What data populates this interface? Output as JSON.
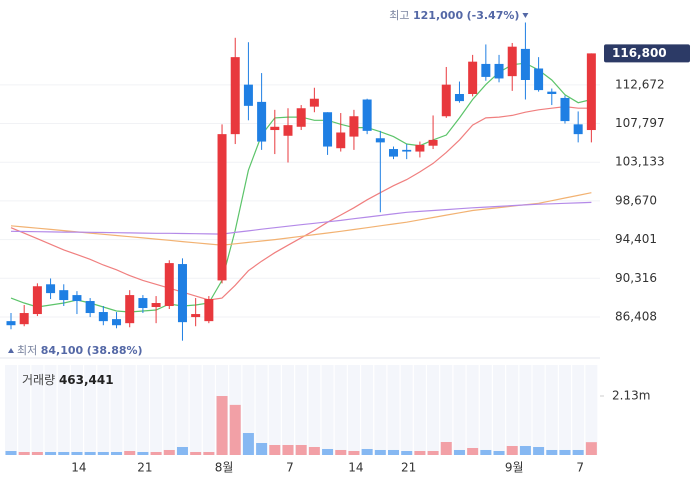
{
  "chart_data": {
    "type": "candlestick",
    "log": true,
    "grid": true,
    "up_color": "#e8383d",
    "down_color": "#1f7fe3",
    "categories": [
      null,
      null,
      null,
      null,
      null,
      "14",
      null,
      null,
      null,
      null,
      "21",
      null,
      null,
      null,
      null,
      null,
      "8월",
      null,
      null,
      null,
      null,
      "7",
      null,
      null,
      null,
      null,
      "14",
      null,
      null,
      null,
      "21",
      null,
      null,
      null,
      null,
      null,
      null,
      null,
      "9월",
      null,
      null,
      null,
      null,
      "7",
      null
    ],
    "open": [
      86000,
      85700,
      86700,
      89700,
      89100,
      88600,
      88000,
      86900,
      86200,
      85800,
      88300,
      87400,
      87500,
      91800,
      86400,
      86000,
      90100,
      106500,
      112700,
      110500,
      107000,
      106300,
      107400,
      109900,
      109200,
      104800,
      106200,
      110800,
      106000,
      104700,
      104600,
      104400,
      105100,
      108700,
      111500,
      111500,
      115400,
      115400,
      113800,
      117400,
      114800,
      111800,
      111000,
      107700,
      107000
    ],
    "high": [
      86800,
      87600,
      89800,
      90300,
      89700,
      89000,
      88300,
      87500,
      86900,
      89100,
      88600,
      88500,
      92200,
      92400,
      88300,
      88500,
      107700,
      118900,
      118300,
      114200,
      109500,
      109700,
      110100,
      112300,
      109200,
      109100,
      109500,
      110900,
      106900,
      105000,
      105300,
      105600,
      108800,
      115000,
      113100,
      116600,
      118000,
      116600,
      118200,
      121000,
      116300,
      112200,
      111300,
      109300,
      116800
    ],
    "low": [
      85200,
      85500,
      86500,
      88200,
      87500,
      86700,
      86400,
      85600,
      85300,
      85400,
      86800,
      85800,
      87200,
      84100,
      85500,
      85800,
      89800,
      105300,
      108200,
      104600,
      104100,
      103100,
      107000,
      109200,
      104000,
      104400,
      104600,
      106500,
      97400,
      103500,
      103500,
      103700,
      104700,
      108500,
      110400,
      111200,
      113200,
      113000,
      111900,
      110800,
      111800,
      110100,
      107800,
      105500,
      105500
    ],
    "close": [
      85600,
      86800,
      89500,
      88800,
      88100,
      88000,
      86800,
      86000,
      85600,
      88600,
      87300,
      87800,
      91900,
      85900,
      86700,
      88200,
      106500,
      116300,
      110000,
      105600,
      107400,
      107600,
      109700,
      110900,
      105000,
      106700,
      108700,
      106900,
      105500,
      103800,
      104400,
      105200,
      105800,
      112700,
      110600,
      115700,
      113700,
      113500,
      117700,
      113300,
      112000,
      111500,
      108100,
      106500,
      116800
    ],
    "series": [
      {
        "color": "#5cc46a",
        "values": [
          88300,
          87800,
          87400,
          87600,
          87800,
          88100,
          87800,
          87400,
          87000,
          86900,
          87000,
          87100,
          87700,
          87500,
          87600,
          87800,
          90100,
          95400,
          102200,
          106400,
          108500,
          108600,
          108600,
          108200,
          108200,
          107700,
          107300,
          107300,
          106800,
          106200,
          105300,
          105100,
          105800,
          106400,
          108500,
          110800,
          112700,
          114300,
          115300,
          115500,
          114600,
          113300,
          111400,
          110400,
          110800
        ]
      },
      {
        "color": "#f07f7f",
        "values": [
          95700,
          95100,
          94500,
          93900,
          93300,
          92800,
          92300,
          91700,
          91200,
          90600,
          90100,
          89700,
          89300,
          88900,
          88500,
          88100,
          88300,
          89600,
          91100,
          92100,
          93000,
          93800,
          94600,
          95400,
          96300,
          97100,
          97900,
          98800,
          99600,
          100400,
          101100,
          102000,
          103000,
          104300,
          105800,
          107600,
          108500,
          108600,
          108800,
          109200,
          109500,
          109700,
          109900,
          109700,
          109700
        ]
      },
      {
        "color": "#f2b272",
        "values": [
          95900,
          95770,
          95640,
          95510,
          95380,
          95240,
          95110,
          94980,
          94850,
          94720,
          94590,
          94460,
          94330,
          94190,
          94060,
          93930,
          93800,
          93950,
          94100,
          94250,
          94400,
          94580,
          94760,
          94940,
          95120,
          95300,
          95500,
          95700,
          95900,
          96100,
          96300,
          96560,
          96820,
          97080,
          97340,
          97600,
          97760,
          97920,
          98080,
          98240,
          98400,
          98700,
          99000,
          99300,
          99600
        ]
      },
      {
        "color": "#b48ae8",
        "values": [
          95300,
          95280,
          95260,
          95240,
          95220,
          95210,
          95190,
          95170,
          95150,
          95130,
          95110,
          95090,
          95080,
          95060,
          95040,
          95020,
          95000,
          95180,
          95350,
          95530,
          95700,
          95860,
          96020,
          96180,
          96340,
          96500,
          96680,
          96860,
          97040,
          97220,
          97400,
          97500,
          97600,
          97700,
          97800,
          97900,
          97980,
          98060,
          98140,
          98220,
          98300,
          98350,
          98400,
          98450,
          98500
        ]
      }
    ],
    "ylim": [
      84165,
      122040
    ],
    "yticks": [
      {
        "value": 86408,
        "label": "86,408"
      },
      {
        "value": 90316,
        "label": "90,316"
      },
      {
        "value": 94401,
        "label": "94,401"
      },
      {
        "value": 98670,
        "label": "98,670"
      },
      {
        "value": 103133,
        "label": "103,133"
      },
      {
        "value": 107797,
        "label": "107,797"
      },
      {
        "value": 112672,
        "label": "112,672"
      }
    ],
    "current_price": 116800,
    "current_price_label": "116,800",
    "high_annotation": {
      "label": "최고",
      "value": 121000,
      "value_label": "121,000",
      "change": "(-3.47%)"
    },
    "low_annotation": {
      "label": "최저",
      "value": 84100,
      "value_label": "84,100",
      "change": "(38.88%)"
    },
    "volume": {
      "title": "거래량",
      "up_color": "#f2a0a6",
      "down_color": "#86b8f2",
      "values": [
        144000,
        108000,
        108000,
        108000,
        108000,
        108000,
        108000,
        108000,
        108000,
        144000,
        108000,
        108000,
        181000,
        289000,
        108000,
        108000,
        2130000,
        1810000,
        794000,
        433000,
        361000,
        361000,
        361000,
        289000,
        217000,
        181000,
        144000,
        217000,
        181000,
        181000,
        144000,
        144000,
        144000,
        469000,
        181000,
        253000,
        181000,
        144000,
        325000,
        325000,
        289000,
        181000,
        181000,
        181000,
        463441
      ],
      "last_label": "463,441",
      "ylim": [
        0,
        3250000
      ],
      "yticks": [
        {
          "value": 2130000,
          "label": "2.13m"
        }
      ]
    }
  }
}
